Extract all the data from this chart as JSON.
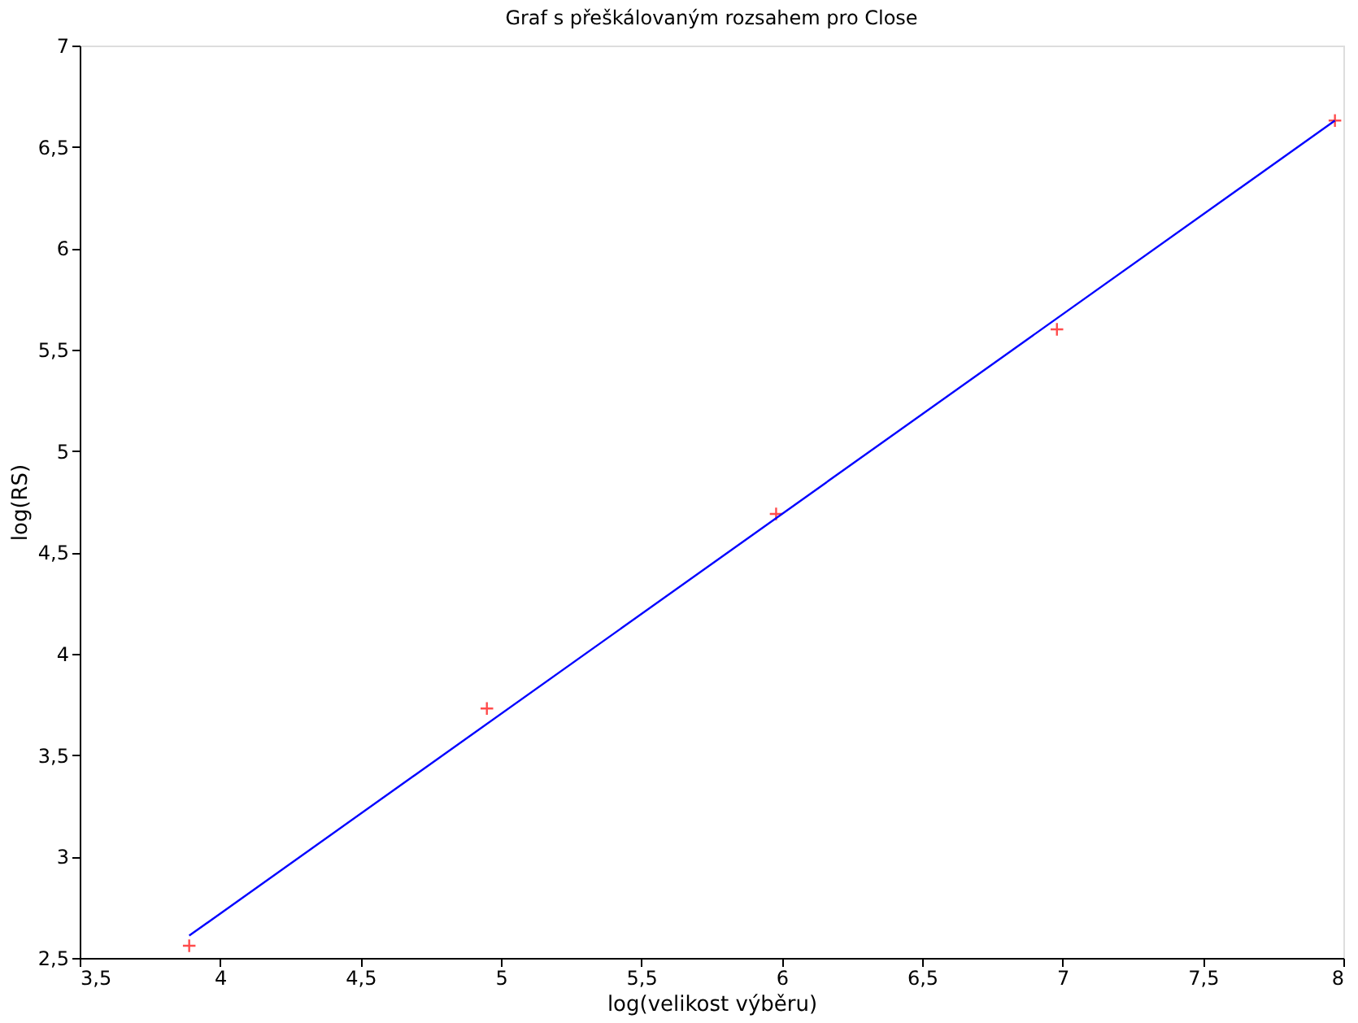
{
  "chart_data": {
    "type": "scatter",
    "title": "Graf s přeškálovaným rozsahem pro Close",
    "xlabel": "log(velikost výběru)",
    "ylabel": "log(RS)",
    "series": [
      {
        "type": "scatter",
        "color": "#ff0000",
        "marker": "cross",
        "x": [
          3.89,
          4.95,
          5.98,
          6.98,
          7.97
        ],
        "values": [
          2.56,
          3.73,
          4.69,
          5.6,
          6.63
        ]
      },
      {
        "type": "line",
        "color": "#0000ff",
        "marker": "none",
        "line_style": "solid",
        "x": [
          3.89,
          7.97
        ],
        "values": [
          2.61,
          6.63
        ]
      }
    ],
    "xlim": [
      3.5,
      8
    ],
    "ylim": [
      2.5,
      7
    ],
    "xticks": [
      {
        "value": 3.5,
        "label": "3,5"
      },
      4,
      {
        "value": 4.5,
        "label": "4,5"
      },
      5,
      {
        "value": 5.5,
        "label": "5,5"
      },
      6,
      {
        "value": 6.5,
        "label": "6,5"
      },
      7,
      {
        "value": 7.5,
        "label": "7,5"
      },
      8
    ],
    "yticks": [
      {
        "value": 2.5,
        "label": "2,5"
      },
      3,
      {
        "value": 3.5,
        "label": "3,5"
      },
      4,
      {
        "value": 4.5,
        "label": "4,5"
      },
      5,
      {
        "value": 5.5,
        "label": "5,5"
      },
      6,
      {
        "value": 6.5,
        "label": "6,5"
      },
      7
    ],
    "grid": false,
    "legend": false
  }
}
